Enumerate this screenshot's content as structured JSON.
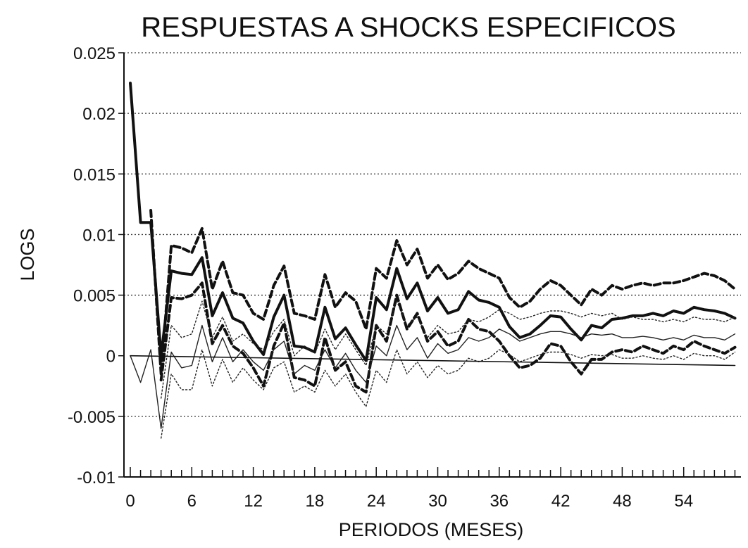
{
  "chart_data": {
    "type": "line",
    "title": "RESPUESTAS A SHOCKS ESPECIFICOS",
    "xlabel": "PERIODOS (MESES)",
    "ylabel": "LOGS",
    "xlim": [
      0,
      59
    ],
    "ylim": [
      -0.01,
      0.025
    ],
    "xticks": [
      0,
      6,
      12,
      18,
      24,
      30,
      36,
      42,
      48,
      54
    ],
    "yticks": [
      -0.01,
      -0.005,
      0,
      0.005,
      0.01,
      0.015,
      0.02,
      0.025
    ],
    "ytick_labels": [
      "-0.01",
      "-0.005",
      "0",
      "0.005",
      "0.01",
      "0.015",
      "0.02",
      "0.025"
    ],
    "grid": "horizontal dotted",
    "legend": "none",
    "x": [
      0,
      1,
      2,
      3,
      4,
      5,
      6,
      7,
      8,
      9,
      10,
      11,
      12,
      13,
      14,
      15,
      16,
      17,
      18,
      19,
      20,
      21,
      22,
      23,
      24,
      25,
      26,
      27,
      28,
      29,
      30,
      31,
      32,
      33,
      34,
      35,
      36,
      37,
      38,
      39,
      40,
      41,
      42,
      43,
      44,
      45,
      46,
      47,
      48,
      49,
      50,
      51,
      52,
      53,
      54,
      55,
      56,
      57,
      58,
      59
    ],
    "series": [
      {
        "style": "thick-solid",
        "values": [
          0.0225,
          0.011,
          0.011,
          0.0,
          0.007,
          0.0068,
          0.0067,
          0.0081,
          0.0033,
          0.0052,
          0.0031,
          0.0027,
          0.0012,
          0.0001,
          0.0032,
          0.005,
          0.0008,
          0.0007,
          0.0003,
          0.004,
          0.0014,
          0.0023,
          0.0009,
          -0.0004,
          0.0048,
          0.0038,
          0.0072,
          0.0047,
          0.006,
          0.0037,
          0.0048,
          0.0035,
          0.0038,
          0.0053,
          0.0046,
          0.0044,
          0.004,
          0.0024,
          0.0015,
          0.0018,
          0.0025,
          0.0033,
          0.0032,
          0.0022,
          0.0013,
          0.0025,
          0.0023,
          0.003,
          0.0031,
          0.0033,
          0.0033,
          0.0035,
          0.0033,
          0.0037,
          0.0035,
          0.004,
          0.0038,
          0.0037,
          0.0035,
          0.0031
        ]
      },
      {
        "style": "thick-dashed-upper",
        "values": [
          null,
          null,
          0.012,
          -0.0015,
          0.0091,
          0.0089,
          0.0085,
          0.0105,
          0.0055,
          0.0078,
          0.0052,
          0.005,
          0.0035,
          0.003,
          0.0058,
          0.0074,
          0.0035,
          0.0033,
          0.003,
          0.0067,
          0.004,
          0.0052,
          0.0045,
          0.0022,
          0.0072,
          0.0064,
          0.0095,
          0.0075,
          0.0088,
          0.0064,
          0.0075,
          0.0063,
          0.0068,
          0.0078,
          0.0072,
          0.0068,
          0.0064,
          0.0048,
          0.004,
          0.0045,
          0.0055,
          0.0062,
          0.0058,
          0.005,
          0.0042,
          0.0055,
          0.005,
          0.0058,
          0.0055,
          0.0058,
          0.006,
          0.0058,
          0.006,
          0.006,
          0.0062,
          0.0065,
          0.0068,
          0.0066,
          0.0062,
          0.0055
        ]
      },
      {
        "style": "thick-dashed-lower",
        "values": [
          null,
          null,
          null,
          -0.002,
          0.0048,
          0.0047,
          0.005,
          0.006,
          0.001,
          0.0025,
          0.0008,
          0.0002,
          -0.001,
          -0.0025,
          0.0008,
          0.0027,
          -0.0018,
          -0.002,
          -0.0025,
          0.0015,
          -0.0012,
          -0.0005,
          -0.0025,
          -0.003,
          0.0025,
          0.0012,
          0.005,
          0.0022,
          0.0035,
          0.0012,
          0.002,
          0.0008,
          0.0012,
          0.003,
          0.0022,
          0.002,
          0.0012,
          0.0,
          -0.001,
          -0.0008,
          -0.0002,
          0.001,
          0.0008,
          -0.0005,
          -0.0015,
          -0.0003,
          -0.0003,
          0.0003,
          0.0005,
          0.0003,
          0.0008,
          0.0005,
          0.0002,
          0.0008,
          0.0005,
          0.0012,
          0.0008,
          0.0005,
          0.0002,
          0.0007
        ]
      },
      {
        "style": "thin-solid",
        "values": [
          0.0,
          -0.0022,
          0.0005,
          -0.006,
          0.0003,
          -0.001,
          -0.0008,
          0.0025,
          -0.0005,
          0.0015,
          -0.0005,
          0.0005,
          -0.0005,
          -0.0012,
          0.0005,
          0.0012,
          -0.0015,
          -0.0008,
          -0.0012,
          0.0005,
          -0.001,
          0.0002,
          -0.0012,
          -0.0022,
          0.0008,
          0.0,
          0.0025,
          0.0005,
          0.0015,
          -0.0002,
          0.001,
          0.0002,
          0.0005,
          0.0015,
          0.0012,
          0.0015,
          0.0022,
          0.0018,
          0.0012,
          0.0015,
          0.0018,
          0.002,
          0.002,
          0.0018,
          0.0015,
          0.0018,
          0.0017,
          0.0018,
          0.0015,
          0.0015,
          0.0016,
          0.0015,
          0.0013,
          0.0015,
          0.0013,
          0.0017,
          0.0015,
          0.0015,
          0.0013,
          0.0018
        ]
      },
      {
        "style": "thin-dotted-upper",
        "values": [
          null,
          null,
          null,
          -0.0035,
          0.0025,
          0.0015,
          0.0018,
          0.0045,
          0.0015,
          0.0032,
          0.0012,
          0.0018,
          0.001,
          0.0005,
          0.002,
          0.003,
          0.0,
          0.0008,
          0.0002,
          0.0022,
          0.0005,
          0.0018,
          0.0005,
          -0.0008,
          0.0025,
          0.0018,
          0.0045,
          0.0025,
          0.0032,
          0.0015,
          0.0025,
          0.0018,
          0.002,
          0.003,
          0.0028,
          0.0032,
          0.0038,
          0.0035,
          0.003,
          0.0032,
          0.0035,
          0.0037,
          0.0037,
          0.0035,
          0.0032,
          0.0035,
          0.0033,
          0.0035,
          0.003,
          0.0032,
          0.003,
          0.003,
          0.0028,
          0.003,
          0.0028,
          0.0032,
          0.003,
          0.003,
          0.0028,
          0.0032
        ]
      },
      {
        "style": "thin-dotted-lower",
        "values": [
          null,
          null,
          null,
          -0.0068,
          -0.0015,
          -0.0028,
          -0.0028,
          0.0005,
          -0.0025,
          -0.0003,
          -0.0022,
          -0.001,
          -0.002,
          -0.0028,
          -0.001,
          -0.0005,
          -0.003,
          -0.0025,
          -0.003,
          -0.0012,
          -0.0025,
          -0.0015,
          -0.003,
          -0.0042,
          -0.0012,
          -0.0022,
          0.0005,
          -0.0015,
          -0.0005,
          -0.0018,
          -0.0008,
          -0.0015,
          -0.0012,
          -0.0002,
          -0.0005,
          -0.0002,
          0.0005,
          0.0001,
          -0.0005,
          -0.0002,
          0.0001,
          0.0003,
          0.0003,
          0.0001,
          -0.0002,
          0.0001,
          0.0,
          0.0001,
          -0.0002,
          -0.0002,
          0.0,
          -0.0002,
          -0.0003,
          0.0,
          -0.0003,
          0.0002,
          0.0,
          0.0,
          -0.0003,
          0.0003
        ]
      },
      {
        "style": "zero-line",
        "values": [
          0.0,
          null,
          null,
          null,
          null,
          null,
          null,
          null,
          null,
          null,
          null,
          null,
          null,
          null,
          null,
          null,
          null,
          null,
          null,
          null,
          null,
          null,
          null,
          null,
          null,
          null,
          null,
          null,
          null,
          null,
          null,
          null,
          null,
          null,
          null,
          null,
          null,
          null,
          null,
          null,
          null,
          null,
          null,
          null,
          null,
          null,
          null,
          null,
          null,
          null,
          null,
          null,
          null,
          null,
          null,
          null,
          null,
          null,
          null,
          -0.0008
        ]
      }
    ]
  }
}
